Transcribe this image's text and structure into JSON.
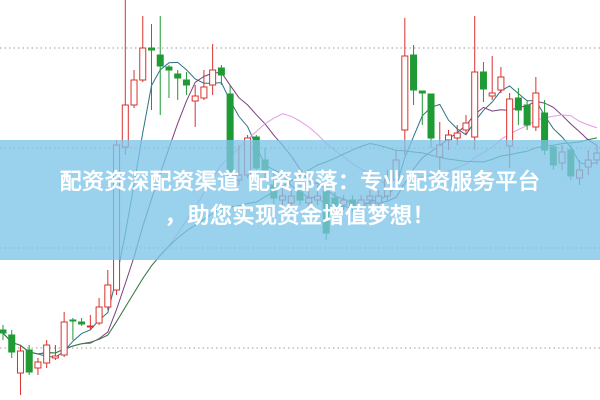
{
  "banner": {
    "line1": "配资资深配资渠道 配资部落：专业配资服务平台",
    "line2": "，助您实现资金增值梦想！"
  },
  "colors": {
    "up": "#d9312e",
    "down": "#1f9a34",
    "banner": "#7dc4e8",
    "text": "#ffffff"
  },
  "chart_data": {
    "type": "candlestick",
    "title": "",
    "xlabel": "",
    "ylabel": "",
    "ylim": [
      0.48,
      4.48
    ],
    "grid": {
      "horizontal": true,
      "style": "dotted",
      "levels": [
        1,
        2,
        3,
        4
      ]
    },
    "moving_averages": [
      {
        "period": 5,
        "color": "#2c7385"
      },
      {
        "period": 10,
        "color": "#7a3f7e"
      },
      {
        "period": 20,
        "color": "#e59be8"
      },
      {
        "period": 30,
        "color": "#2f7f3b"
      }
    ],
    "ohlc_order": [
      "open",
      "close",
      "high",
      "low"
    ],
    "candles": [
      [
        1.18,
        1.15,
        1.23,
        1.08
      ],
      [
        1.13,
        0.96,
        1.18,
        0.9
      ],
      [
        0.75,
        0.97,
        1.03,
        0.53
      ],
      [
        0.98,
        0.76,
        1.03,
        0.73
      ],
      [
        0.8,
        0.86,
        0.9,
        0.73
      ],
      [
        0.85,
        1.03,
        1.08,
        0.8
      ],
      [
        0.9,
        0.92,
        1.03,
        0.88
      ],
      [
        0.93,
        1.26,
        1.36,
        0.91
      ],
      [
        1.28,
        1.27,
        1.3,
        1.08
      ],
      [
        1.26,
        1.24,
        1.3,
        1.22
      ],
      [
        1.21,
        1.22,
        1.33,
        1.18
      ],
      [
        1.25,
        1.41,
        1.5,
        1.23
      ],
      [
        1.41,
        1.63,
        1.78,
        1.38
      ],
      [
        1.58,
        3.03,
        3.08,
        1.53
      ],
      [
        3.01,
        3.43,
        4.48,
        2.93
      ],
      [
        3.43,
        3.68,
        3.78,
        3.4
      ],
      [
        3.68,
        4.0,
        4.32,
        3.66
      ],
      [
        4.0,
        3.98,
        4.24,
        3.38
      ],
      [
        3.93,
        3.82,
        4.32,
        3.33
      ],
      [
        3.81,
        3.78,
        3.83,
        3.5
      ],
      [
        3.74,
        3.7,
        3.78,
        3.48
      ],
      [
        3.68,
        3.63,
        3.76,
        3.53
      ],
      [
        3.47,
        3.52,
        3.63,
        3.21
      ],
      [
        3.5,
        3.61,
        3.78,
        3.48
      ],
      [
        3.63,
        3.78,
        4.04,
        3.53
      ],
      [
        3.8,
        3.73,
        3.83,
        3.63
      ],
      [
        3.54,
        2.73,
        3.63,
        2.68
      ],
      [
        2.68,
        2.73,
        3.03,
        2.63
      ],
      [
        2.73,
        3.1,
        3.13,
        2.7
      ],
      [
        3.11,
        2.8,
        3.13,
        2.73
      ],
      [
        2.88,
        2.78,
        3.0,
        2.68
      ],
      [
        2.63,
        2.5,
        2.78,
        2.43
      ],
      [
        2.48,
        2.52,
        2.63,
        2.43
      ],
      [
        2.45,
        2.52,
        2.58,
        2.38
      ],
      [
        2.56,
        2.48,
        2.63,
        2.43
      ],
      [
        2.45,
        2.5,
        2.58,
        2.4
      ],
      [
        2.48,
        2.52,
        2.63,
        2.43
      ],
      [
        2.58,
        2.15,
        2.63,
        2.08
      ],
      [
        2.5,
        2.43,
        2.56,
        2.36
      ],
      [
        2.43,
        2.48,
        2.53,
        2.38
      ],
      [
        2.48,
        2.41,
        2.53,
        2.36
      ],
      [
        2.41,
        2.48,
        2.53,
        2.38
      ],
      [
        2.48,
        2.52,
        2.58,
        2.43
      ],
      [
        2.45,
        2.52,
        2.58,
        2.4
      ],
      [
        2.52,
        2.68,
        2.78,
        2.48
      ],
      [
        2.68,
        2.88,
        2.98,
        2.63
      ],
      [
        3.18,
        3.92,
        4.3,
        2.93
      ],
      [
        3.93,
        3.58,
        4.03,
        3.43
      ],
      [
        3.57,
        3.55,
        3.57,
        3.23
      ],
      [
        3.54,
        3.1,
        3.54,
        3.0
      ],
      [
        2.91,
        3.03,
        3.26,
        2.78
      ],
      [
        3.08,
        3.13,
        3.18,
        2.98
      ],
      [
        3.1,
        3.15,
        3.23,
        3.03
      ],
      [
        3.18,
        3.25,
        3.33,
        3.13
      ],
      [
        3.11,
        3.76,
        4.32,
        2.98
      ],
      [
        3.76,
        3.59,
        3.86,
        3.46
      ],
      [
        3.52,
        3.55,
        3.92,
        3.48
      ],
      [
        3.58,
        3.71,
        3.81,
        3.55
      ],
      [
        3.02,
        3.49,
        3.55,
        2.8
      ],
      [
        3.5,
        3.38,
        3.6,
        3.23
      ],
      [
        3.43,
        3.23,
        3.48,
        3.18
      ],
      [
        3.21,
        3.55,
        3.71,
        3.17
      ],
      [
        3.35,
        2.98,
        3.48,
        2.93
      ],
      [
        3.01,
        2.83,
        3.03,
        2.78
      ],
      [
        2.85,
        2.96,
        3.03,
        2.78
      ],
      [
        2.98,
        2.72,
        3.03,
        2.68
      ],
      [
        2.7,
        2.78,
        2.88,
        2.63
      ],
      [
        2.81,
        2.88,
        2.98,
        2.73
      ],
      [
        2.88,
        2.95,
        3.03,
        2.83
      ]
    ]
  }
}
